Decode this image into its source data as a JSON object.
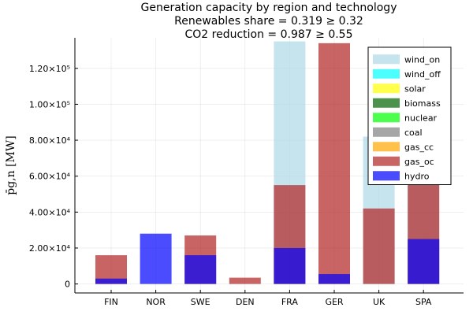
{
  "chart_data": {
    "type": "bar",
    "title": [
      "Generation capacity by region and technology",
      "Renewables share = 0.319 ≥ 0.32",
      "CO2 reduction = 0.987 ≥ 0.55"
    ],
    "ylabel": "p̄g,n [MW]",
    "xlabel": "",
    "ylim": [
      -5000,
      137000
    ],
    "y_ticks": [
      {
        "value": 0,
        "label": "0"
      },
      {
        "value": 20000,
        "label": "2.00×10⁴"
      },
      {
        "value": 40000,
        "label": "4.00×10⁴"
      },
      {
        "value": 60000,
        "label": "6.00×10⁴"
      },
      {
        "value": 80000,
        "label": "8.00×10⁴"
      },
      {
        "value": 100000,
        "label": "1.00×10⁵"
      },
      {
        "value": 120000,
        "label": "1.20×10⁵"
      }
    ],
    "categories": [
      "FIN",
      "NOR",
      "SWE",
      "DEN",
      "FRA",
      "GER",
      "UK",
      "SPA"
    ],
    "grid": true,
    "legend_position": "top-right",
    "legend": [
      "wind_on",
      "wind_off",
      "solar",
      "biomass",
      "nuclear",
      "coal",
      "gas_cc",
      "gas_oc",
      "hydro"
    ],
    "series": [
      {
        "name": "wind_on",
        "color": "#add8e6",
        "values": [
          0,
          0,
          0,
          0,
          135000,
          0,
          82000,
          70000
        ]
      },
      {
        "name": "gas_oc",
        "color": "#b22222",
        "values": [
          16000,
          0,
          27000,
          3500,
          55000,
          134000,
          42000,
          68000
        ]
      },
      {
        "name": "hydro",
        "color": "#0000ff",
        "values": [
          3000,
          28000,
          16000,
          0,
          20000,
          5500,
          0,
          25000
        ]
      }
    ],
    "legend_colors": {
      "wind_on": "#add8e6",
      "wind_off": "#00ffff",
      "solar": "#ffff00",
      "biomass": "#006400",
      "nuclear": "#00ff00",
      "coal": "#808080",
      "gas_cc": "#ffa500",
      "gas_oc": "#b22222",
      "hydro": "#0000ff"
    }
  }
}
